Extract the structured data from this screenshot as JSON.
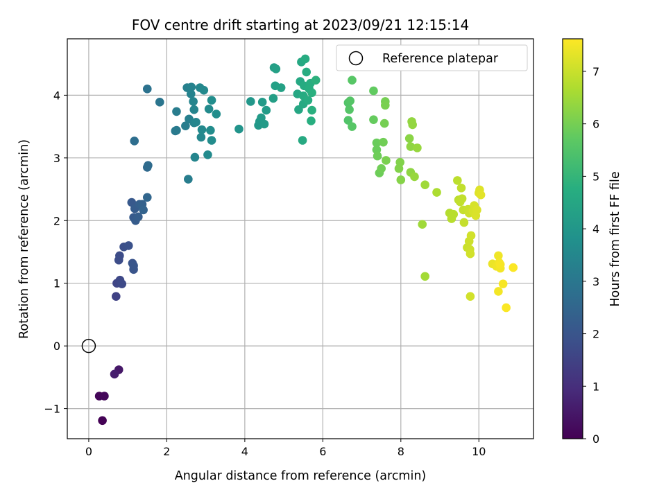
{
  "chart_data": {
    "type": "scatter",
    "title": "FOV centre drift starting at 2023/09/21 12:15:14",
    "xlabel": "Angular distance from reference (arcmin)",
    "ylabel": "Rotation from reference (arcmin)",
    "xlim": [
      -0.55,
      11.4
    ],
    "ylim": [
      -1.48,
      4.9
    ],
    "xticks": [
      0,
      2,
      4,
      6,
      8,
      10
    ],
    "yticks": [
      -1,
      0,
      1,
      2,
      3,
      4
    ],
    "grid": true,
    "colormap": "viridis",
    "colorbar": {
      "label": "Hours from first FF file",
      "range": [
        0,
        7.62
      ],
      "ticks": [
        0,
        1,
        2,
        3,
        4,
        5,
        6,
        7
      ]
    },
    "legend": {
      "position": "top-right",
      "entries": [
        "Reference platepar"
      ]
    },
    "reference_point": {
      "x": 0,
      "y": 0,
      "label": "Reference platepar"
    },
    "series": [
      {
        "points": [
          [
            0.35,
            -1.19,
            0.02
          ],
          [
            0.27,
            -0.8,
            0.1
          ],
          [
            0.4,
            -0.8,
            0.15
          ],
          [
            0.77,
            -0.38,
            0.5
          ],
          [
            0.66,
            -0.45,
            0.6
          ],
          [
            0.7,
            0.79,
            1.5
          ],
          [
            0.72,
            1.0,
            1.6
          ],
          [
            0.8,
            1.05,
            1.65
          ],
          [
            0.85,
            0.99,
            1.7
          ],
          [
            0.79,
            1.44,
            1.75
          ],
          [
            0.77,
            1.37,
            1.78
          ],
          [
            0.9,
            1.58,
            1.85
          ],
          [
            1.02,
            1.6,
            1.9
          ],
          [
            1.12,
            1.32,
            1.95
          ],
          [
            1.15,
            1.22,
            2.0
          ],
          [
            1.15,
            1.28,
            2.02
          ],
          [
            1.1,
            2.29,
            2.1
          ],
          [
            1.15,
            2.05,
            2.15
          ],
          [
            1.18,
            2.19,
            2.2
          ],
          [
            1.2,
            2.0,
            2.2
          ],
          [
            1.27,
            2.06,
            2.25
          ],
          [
            1.3,
            2.26,
            2.3
          ],
          [
            1.37,
            2.26,
            2.35
          ],
          [
            1.4,
            2.17,
            2.4
          ],
          [
            1.5,
            2.37,
            2.5
          ],
          [
            1.5,
            2.85,
            2.6
          ],
          [
            1.52,
            2.88,
            2.65
          ],
          [
            1.17,
            3.27,
            2.75
          ],
          [
            1.5,
            4.1,
            2.85
          ],
          [
            1.82,
            3.89,
            2.95
          ],
          [
            2.22,
            3.43,
            3.05
          ],
          [
            2.25,
            3.44,
            3.1
          ],
          [
            2.25,
            3.74,
            3.15
          ],
          [
            2.48,
            3.51,
            3.2
          ],
          [
            2.55,
            2.66,
            3.2
          ],
          [
            2.57,
            3.62,
            3.25
          ],
          [
            2.52,
            4.12,
            3.3
          ],
          [
            2.6,
            4.11,
            3.3
          ],
          [
            2.63,
            4.13,
            3.35
          ],
          [
            2.62,
            4.02,
            3.35
          ],
          [
            2.7,
            3.56,
            3.35
          ],
          [
            2.68,
            3.9,
            3.4
          ],
          [
            2.7,
            3.77,
            3.4
          ],
          [
            2.72,
            3.01,
            3.45
          ],
          [
            2.75,
            3.57,
            3.45
          ],
          [
            2.85,
            4.12,
            3.5
          ],
          [
            2.88,
            3.33,
            3.5
          ],
          [
            2.9,
            3.45,
            3.55
          ],
          [
            2.95,
            4.08,
            3.55
          ],
          [
            3.05,
            3.05,
            3.6
          ],
          [
            3.08,
            3.78,
            3.6
          ],
          [
            3.12,
            3.44,
            3.65
          ],
          [
            3.15,
            3.28,
            3.65
          ],
          [
            3.15,
            3.92,
            3.7
          ],
          [
            3.27,
            3.7,
            3.7
          ],
          [
            3.85,
            3.46,
            3.9
          ],
          [
            4.15,
            3.9,
            4.0
          ],
          [
            4.35,
            3.52,
            4.05
          ],
          [
            4.38,
            3.58,
            4.05
          ],
          [
            4.42,
            3.64,
            4.1
          ],
          [
            4.45,
            3.89,
            4.1
          ],
          [
            4.5,
            3.54,
            4.15
          ],
          [
            4.55,
            3.76,
            4.15
          ],
          [
            4.73,
            3.95,
            4.25
          ],
          [
            4.75,
            4.44,
            4.25
          ],
          [
            4.78,
            4.15,
            4.3
          ],
          [
            4.8,
            4.42,
            4.3
          ],
          [
            4.93,
            4.12,
            4.35
          ],
          [
            5.35,
            4.02,
            4.5
          ],
          [
            5.38,
            3.77,
            4.5
          ],
          [
            5.42,
            4.22,
            4.55
          ],
          [
            5.45,
            4.53,
            4.55
          ],
          [
            5.48,
            3.28,
            4.6
          ],
          [
            5.5,
            3.86,
            4.6
          ],
          [
            5.5,
            3.99,
            4.65
          ],
          [
            5.52,
            4.15,
            4.65
          ],
          [
            5.55,
            4.58,
            4.65
          ],
          [
            5.58,
            4.37,
            4.7
          ],
          [
            5.62,
            3.92,
            4.7
          ],
          [
            5.65,
            4.1,
            4.75
          ],
          [
            5.68,
            4.19,
            4.75
          ],
          [
            5.7,
            3.59,
            4.75
          ],
          [
            5.72,
            4.04,
            4.8
          ],
          [
            5.72,
            3.76,
            4.8
          ],
          [
            5.82,
            4.24,
            4.85
          ],
          [
            6.65,
            3.88,
            5.5
          ],
          [
            6.65,
            3.6,
            5.5
          ],
          [
            6.68,
            3.77,
            5.55
          ],
          [
            6.7,
            3.91,
            5.55
          ],
          [
            6.75,
            3.5,
            5.6
          ],
          [
            6.75,
            4.24,
            5.6
          ],
          [
            7.3,
            4.07,
            5.75
          ],
          [
            7.3,
            3.61,
            5.8
          ],
          [
            7.38,
            3.13,
            5.85
          ],
          [
            7.38,
            3.24,
            5.85
          ],
          [
            7.4,
            3.03,
            5.9
          ],
          [
            7.45,
            2.76,
            5.9
          ],
          [
            7.5,
            2.83,
            5.95
          ],
          [
            7.55,
            3.25,
            5.95
          ],
          [
            7.58,
            3.55,
            6.0
          ],
          [
            7.6,
            3.9,
            6.0
          ],
          [
            7.6,
            3.84,
            6.05
          ],
          [
            7.62,
            2.96,
            6.05
          ],
          [
            7.95,
            2.83,
            6.15
          ],
          [
            7.98,
            2.93,
            6.15
          ],
          [
            8.0,
            2.65,
            6.2
          ],
          [
            8.22,
            3.31,
            6.25
          ],
          [
            8.25,
            2.77,
            6.3
          ],
          [
            8.25,
            3.18,
            6.3
          ],
          [
            8.28,
            3.58,
            6.35
          ],
          [
            8.3,
            3.53,
            6.35
          ],
          [
            8.35,
            2.7,
            6.4
          ],
          [
            8.42,
            3.16,
            6.4
          ],
          [
            8.55,
            1.94,
            6.5
          ],
          [
            8.62,
            2.57,
            6.5
          ],
          [
            8.62,
            1.11,
            6.55
          ],
          [
            8.92,
            2.45,
            6.65
          ],
          [
            9.25,
            2.12,
            6.75
          ],
          [
            9.3,
            2.03,
            6.8
          ],
          [
            9.35,
            2.1,
            6.8
          ],
          [
            9.45,
            2.64,
            6.85
          ],
          [
            9.48,
            2.33,
            6.85
          ],
          [
            9.52,
            2.3,
            6.9
          ],
          [
            9.55,
            2.52,
            6.9
          ],
          [
            9.57,
            2.35,
            6.9
          ],
          [
            9.6,
            2.17,
            6.95
          ],
          [
            9.62,
            1.97,
            6.95
          ],
          [
            9.7,
            1.57,
            7.0
          ],
          [
            9.72,
            2.18,
            7.0
          ],
          [
            9.75,
            2.12,
            7.05
          ],
          [
            9.75,
            1.67,
            7.05
          ],
          [
            9.77,
            1.54,
            7.05
          ],
          [
            9.78,
            1.47,
            7.1
          ],
          [
            9.78,
            0.79,
            7.1
          ],
          [
            9.8,
            1.76,
            7.1
          ],
          [
            9.85,
            2.15,
            7.15
          ],
          [
            9.88,
            2.24,
            7.15
          ],
          [
            9.9,
            2.13,
            7.15
          ],
          [
            9.95,
            2.17,
            7.2
          ],
          [
            9.92,
            2.08,
            7.2
          ],
          [
            10.0,
            2.44,
            7.25
          ],
          [
            10.02,
            2.49,
            7.25
          ],
          [
            10.05,
            2.41,
            7.3
          ],
          [
            10.35,
            1.31,
            7.4
          ],
          [
            10.45,
            1.27,
            7.45
          ],
          [
            10.5,
            1.44,
            7.45
          ],
          [
            10.5,
            0.87,
            7.5
          ],
          [
            10.52,
            1.33,
            7.5
          ],
          [
            10.55,
            1.24,
            7.5
          ],
          [
            10.55,
            1.3,
            7.55
          ],
          [
            10.62,
            0.99,
            7.55
          ],
          [
            10.7,
            0.61,
            7.58
          ],
          [
            10.88,
            1.25,
            7.6
          ]
        ]
      }
    ]
  }
}
